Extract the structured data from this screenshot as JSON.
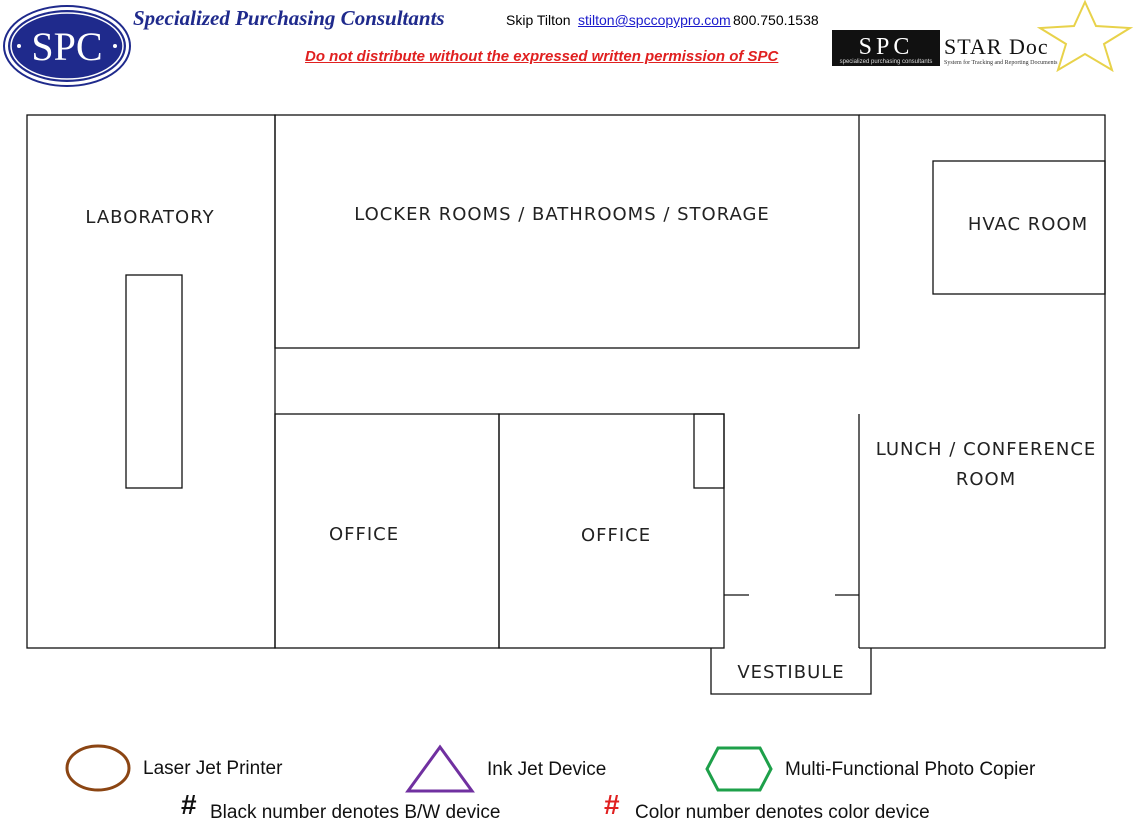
{
  "header": {
    "logo_text": "SPC",
    "company_name": "Specialized Purchasing Consultants",
    "contact_name": "Skip Tilton",
    "contact_email": "stilton@spccopypro.com",
    "contact_phone": "800.750.1538",
    "warning": "Do not distribute without the expressed written permission of SPC",
    "stardoc_logo": {
      "brand": "SPC",
      "brand_sub": "specialized purchasing consultants",
      "product": "STAR Doc",
      "tagline": "System for Tracking and Reporting Documents"
    }
  },
  "floor_plan": {
    "rooms": {
      "laboratory": "LABORATORY",
      "locker": "LOCKER ROOMS / BATHROOMS / STORAGE",
      "hvac": "HVAC ROOM",
      "lunch_line1": "LUNCH / CONFERENCE",
      "lunch_line2": "ROOM",
      "office1": "OFFICE",
      "office2": "OFFICE",
      "vestibule": "VESTIBULE"
    }
  },
  "legend": {
    "laser_jet": "Laser Jet Printer",
    "ink_jet": "Ink Jet Device",
    "mfp": "Multi-Functional Photo Copier",
    "hash_symbol": "#",
    "bw_note": "Black number denotes B/W device",
    "color_note": "Color number denotes color device",
    "colors": {
      "laser_jet": "#8b4513",
      "ink_jet": "#7030a0",
      "mfp": "#1ea04a",
      "color_hash": "#e02020"
    }
  }
}
